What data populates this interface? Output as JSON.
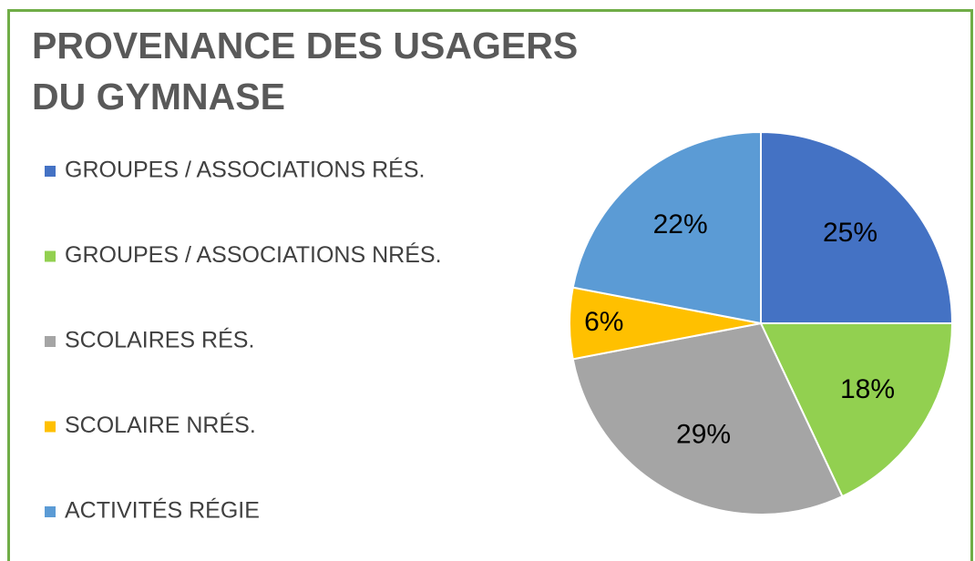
{
  "chart_data": {
    "type": "pie",
    "title": "PROVENANCE DES USAGERS DU GYMNASE",
    "categories": [
      "GROUPES / ASSOCIATIONS RÉS.",
      "GROUPES / ASSOCIATIONS NRÉS.",
      "SCOLAIRES RÉS.",
      "SCOLAIRE NRÉS.",
      "ACTIVITÉS RÉGIE"
    ],
    "values": [
      25,
      18,
      29,
      6,
      22
    ],
    "value_labels": [
      "25%",
      "18%",
      "29%",
      "6%",
      "22%"
    ],
    "colors": [
      "#4472c4",
      "#92d050",
      "#a5a5a5",
      "#ffc000",
      "#5b9bd5"
    ],
    "legend": "left"
  }
}
